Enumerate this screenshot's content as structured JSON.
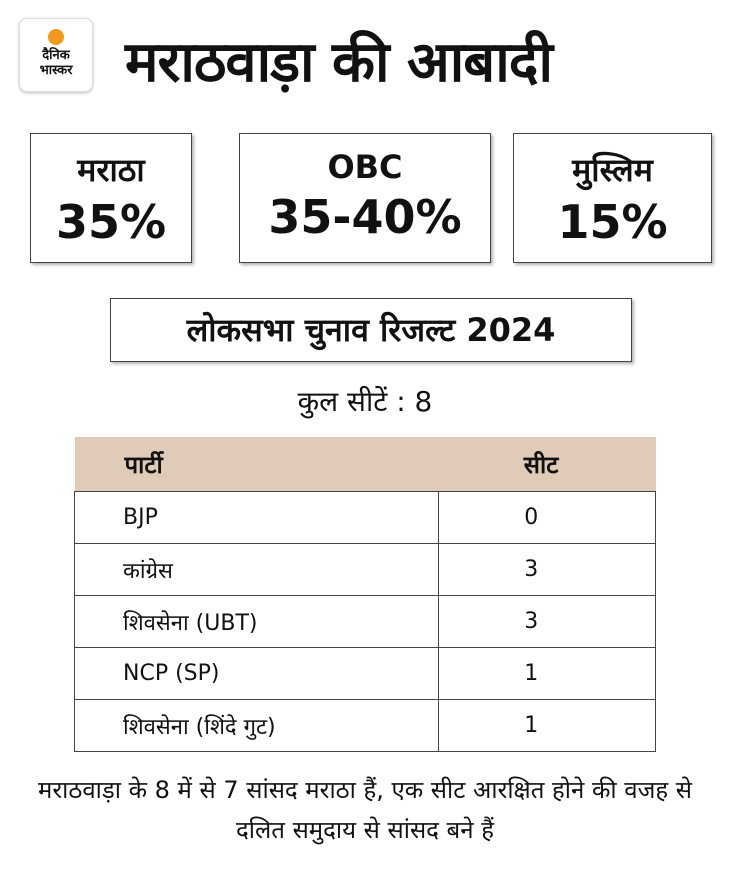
{
  "logo": {
    "line1": "दैनिक",
    "line2": "भास्कर"
  },
  "title": "मराठवाड़ा की आबादी",
  "stats": [
    {
      "label": "मराठा",
      "value": "35%"
    },
    {
      "label": "OBC",
      "value": "35-40%"
    },
    {
      "label": "मुस्लिम",
      "value": "15%"
    }
  ],
  "subtitle": "लोकसभा चुनाव रिजल्ट 2024",
  "total_seats": "कुल सीटें : 8",
  "table": {
    "headers": [
      "पार्टी",
      "सीट"
    ],
    "rows": [
      [
        "BJP",
        "0"
      ],
      [
        "कांग्रेस",
        "3"
      ],
      [
        "शिवसेना (UBT)",
        "3"
      ],
      [
        "NCP (SP)",
        "1"
      ],
      [
        "शिवसेना (शिंदे गुट)",
        "1"
      ]
    ]
  },
  "note": "मराठवाड़ा के 8 में से 7 सांसद मराठा हैं, एक सीट आरक्षित होने की वजह से दलित समुदाय से सांसद बने हैं"
}
